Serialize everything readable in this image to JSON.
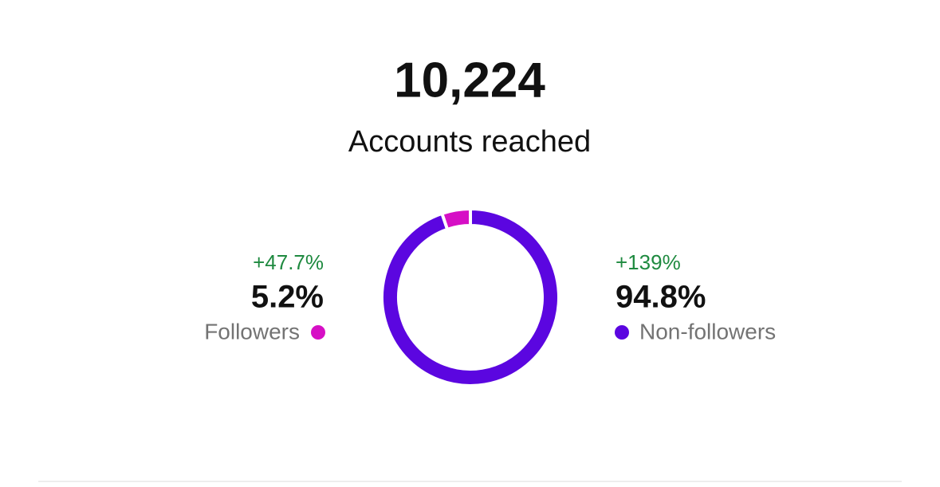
{
  "header": {
    "total": "10,224",
    "label": "Accounts reached"
  },
  "chart_data": {
    "type": "donut",
    "categories": [
      "Followers",
      "Non-followers"
    ],
    "values": [
      5.2,
      94.8
    ],
    "value_labels": [
      "5.2%",
      "94.8%"
    ],
    "change_labels": [
      "+47.7%",
      "+139%"
    ],
    "colors": [
      "#d60fc5",
      "#5b06e0"
    ]
  }
}
